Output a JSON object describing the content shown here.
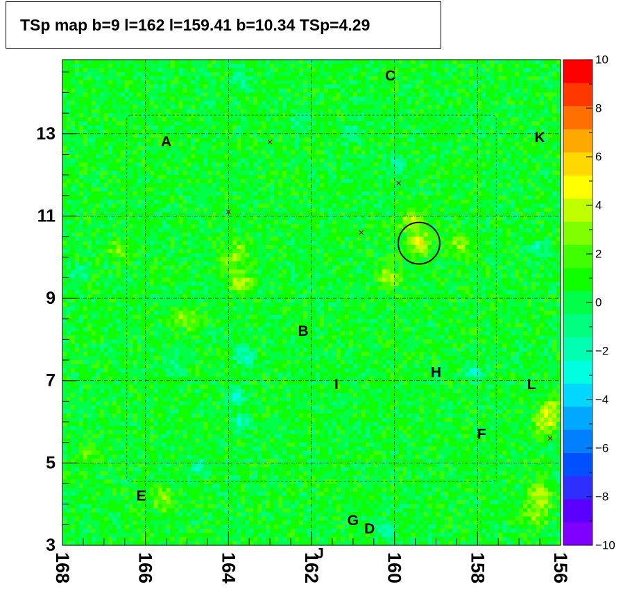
{
  "chart_data": {
    "type": "heatmap",
    "title": "TSp map b=9 l=162 l=159.41 b=10.34 TSp=4.29",
    "xlabel": "",
    "ylabel": "",
    "xlim": [
      168,
      156
    ],
    "ylim": [
      3,
      14.8
    ],
    "x_ticks": [
      "168",
      "166",
      "164",
      "162",
      "160",
      "158",
      "156"
    ],
    "x_tick_values": [
      168,
      166,
      164,
      162,
      160,
      158,
      156
    ],
    "y_ticks": [
      "3",
      "5",
      "7",
      "9",
      "11",
      "13"
    ],
    "y_tick_values": [
      3,
      5,
      7,
      9,
      11,
      13
    ],
    "colorbar": {
      "min": -10,
      "max": 10,
      "ticks": [
        "10",
        "8",
        "6",
        "4",
        "2",
        "0",
        "−2",
        "−4",
        "−6",
        "−8",
        "−10"
      ],
      "tick_values": [
        10,
        8,
        6,
        4,
        2,
        0,
        -2,
        -4,
        -6,
        -8,
        -10
      ],
      "colors": [
        "#7f00ff",
        "#5a00ff",
        "#2e2eff",
        "#0050ff",
        "#0080ff",
        "#00a8ff",
        "#00d8ff",
        "#00ffe0",
        "#00ffb0",
        "#00ff80",
        "#00ff48",
        "#10ff00",
        "#40ff00",
        "#80ff00",
        "#c0ff00",
        "#ffff00",
        "#ffd800",
        "#ffa800",
        "#ff7000",
        "#ff3800",
        "#ff0000"
      ]
    },
    "background_value": 0.5,
    "hotspots": [
      {
        "l": 159.41,
        "b": 10.34,
        "value": 4.3
      },
      {
        "l": 159.6,
        "b": 10.9,
        "value": 3.2
      },
      {
        "l": 160.1,
        "b": 9.5,
        "value": 3.3
      },
      {
        "l": 158.4,
        "b": 10.3,
        "value": 2.5
      },
      {
        "l": 163.7,
        "b": 9.4,
        "value": 3.0
      },
      {
        "l": 164.0,
        "b": 9.9,
        "value": 2.4
      },
      {
        "l": 165.0,
        "b": 8.5,
        "value": 2.6
      },
      {
        "l": 166.6,
        "b": 10.2,
        "value": 2.2
      },
      {
        "l": 163.7,
        "b": 10.2,
        "value": 2.0
      },
      {
        "l": 156.2,
        "b": 6.3,
        "value": 3.5
      },
      {
        "l": 156.4,
        "b": 5.9,
        "value": 3.2
      },
      {
        "l": 156.5,
        "b": 4.2,
        "value": 3.8
      },
      {
        "l": 156.6,
        "b": 3.7,
        "value": 2.6
      },
      {
        "l": 165.6,
        "b": 4.1,
        "value": 2.6
      },
      {
        "l": 167.4,
        "b": 5.2,
        "value": 1.8
      }
    ],
    "coldspots": [
      {
        "l": 163.6,
        "b": 7.6,
        "value": -3.0
      },
      {
        "l": 165.3,
        "b": 7.4,
        "value": -2.0
      },
      {
        "l": 158.1,
        "b": 7.2,
        "value": -2.5
      },
      {
        "l": 156.6,
        "b": 10.2,
        "value": -2.2
      },
      {
        "l": 163.7,
        "b": 6.0,
        "value": -2.7
      },
      {
        "l": 160.2,
        "b": 3.4,
        "value": -2.4
      },
      {
        "l": 164.7,
        "b": 4.9,
        "value": -2.0
      },
      {
        "l": 162.3,
        "b": 13.3,
        "value": -2.0
      },
      {
        "l": 161.1,
        "b": 13.0,
        "value": -2.2
      },
      {
        "l": 163.7,
        "b": 14.3,
        "value": -2.0
      },
      {
        "l": 159.9,
        "b": 12.3,
        "value": -2.1
      },
      {
        "l": 163.8,
        "b": 6.6,
        "value": -2.5
      },
      {
        "l": 167.6,
        "b": 9.6,
        "value": -1.8
      }
    ],
    "circle": {
      "l": 159.41,
      "b": 10.34,
      "radius_deg": 0.5
    },
    "markers": [
      {
        "l": 163.0,
        "b": 12.8
      },
      {
        "l": 159.9,
        "b": 11.8
      },
      {
        "l": 164.0,
        "b": 11.1
      },
      {
        "l": 160.8,
        "b": 10.6
      },
      {
        "l": 156.25,
        "b": 5.6
      }
    ],
    "region_labels": [
      {
        "text": "A",
        "l": 165.5,
        "b": 12.8
      },
      {
        "text": "B",
        "l": 162.2,
        "b": 8.2
      },
      {
        "text": "C",
        "l": 160.1,
        "b": 14.4
      },
      {
        "text": "D",
        "l": 160.6,
        "b": 3.4
      },
      {
        "text": "E",
        "l": 166.1,
        "b": 4.2
      },
      {
        "text": "F",
        "l": 157.9,
        "b": 5.7
      },
      {
        "text": "G",
        "l": 161.0,
        "b": 3.6
      },
      {
        "text": "H",
        "l": 159.0,
        "b": 7.2
      },
      {
        "text": "I",
        "l": 161.4,
        "b": 6.9
      },
      {
        "text": "J",
        "l": 161.8,
        "b": 2.8
      },
      {
        "text": "K",
        "l": 156.5,
        "b": 12.9
      },
      {
        "text": "L",
        "l": 156.7,
        "b": 6.9
      }
    ],
    "grid_l": [
      168,
      166,
      164,
      162,
      160,
      158,
      156
    ],
    "grid_b": [
      5,
      7,
      9,
      11,
      13
    ],
    "rect": {
      "l1": 166.45,
      "l2": 157.55,
      "b1": 4.55,
      "b2": 13.45
    }
  }
}
